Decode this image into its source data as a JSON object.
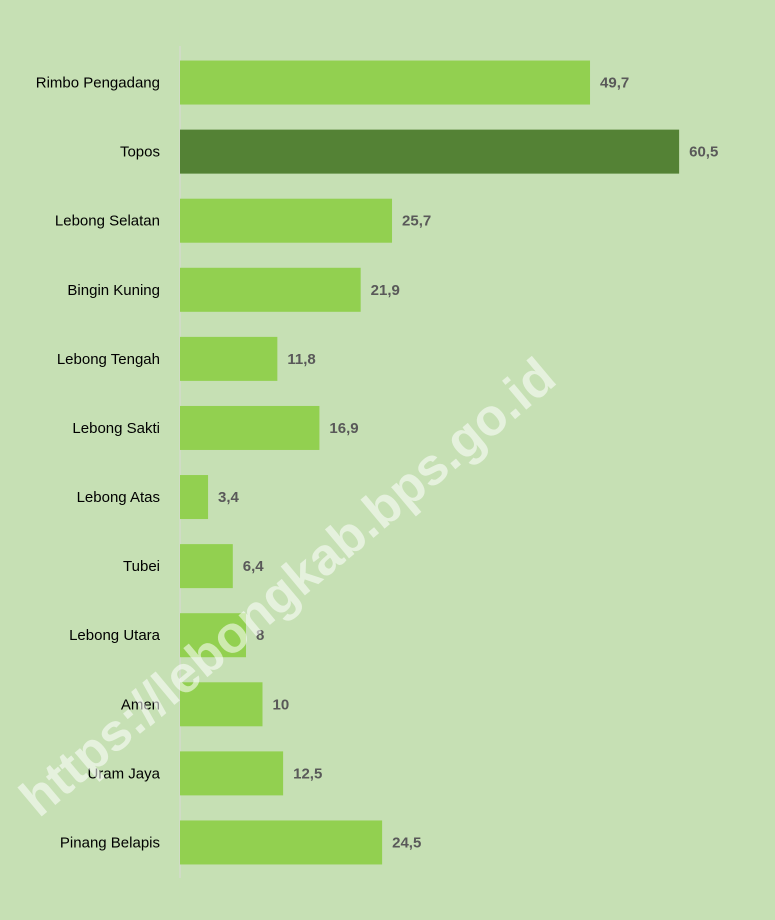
{
  "chart_data": {
    "type": "bar",
    "orientation": "horizontal",
    "categories": [
      "Rimbo Pengadang",
      "Topos",
      "Lebong Selatan",
      "Bingin Kuning",
      "Lebong Tengah",
      "Lebong Sakti",
      "Lebong Atas",
      "Tubei",
      "Lebong Utara",
      "Amen",
      "Uram Jaya",
      "Pinang Belapis"
    ],
    "values": [
      49.7,
      60.5,
      25.7,
      21.9,
      11.8,
      16.9,
      3.4,
      6.4,
      8,
      10,
      12.5,
      24.5
    ],
    "value_labels": [
      "49,7",
      "60,5",
      "25,7",
      "21,9",
      "11,8",
      "16,9",
      "3,4",
      "6,4",
      "8",
      "10",
      "12,5",
      "24,5"
    ],
    "colors": [
      "#92d050",
      "#548235",
      "#92d050",
      "#92d050",
      "#92d050",
      "#92d050",
      "#92d050",
      "#92d050",
      "#92d050",
      "#92d050",
      "#92d050",
      "#92d050"
    ],
    "xlim": [
      0,
      70
    ],
    "watermark": "https://lebongkab.bps.go.id"
  }
}
